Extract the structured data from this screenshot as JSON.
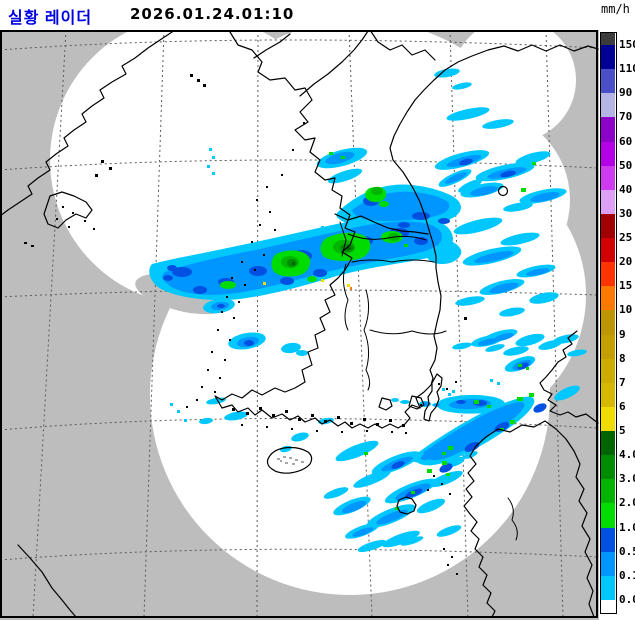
{
  "header": {
    "title": "실황 레이더",
    "title_color": "#0000e1",
    "timestamp": "2026.01.24.01:10",
    "unit_label": "mm/h"
  },
  "scale": {
    "unit": "mm/h",
    "labels": [
      "150",
      "110",
      "90",
      "70",
      "60",
      "50",
      "40",
      "30",
      "25",
      "20",
      "15",
      "10",
      "9",
      "8",
      "7",
      "6",
      "5",
      "4.0",
      "3.0",
      "2.0",
      "1.0",
      "0.5",
      "0.1",
      "0.0"
    ],
    "colors": [
      "#3c3c3c",
      "#000096",
      "#4b50c8",
      "#b4b4e6",
      "#8c00c8",
      "#b400e6",
      "#cd3cf0",
      "#dca0f5",
      "#a00000",
      "#d20000",
      "#ff3200",
      "#ff7800",
      "#bb9600",
      "#c3a000",
      "#cdac00",
      "#d7b800",
      "#f0dc00",
      "#006400",
      "#008c00",
      "#00b400",
      "#00dc00",
      "#0050e1",
      "#0096ff",
      "#00c8ff",
      "#ffffff"
    ]
  },
  "map": {
    "colors": {
      "outside_coverage": "#bdbdbd",
      "coverage": "#ffffff",
      "grid": "#5a5a5a",
      "coastline": "#000000",
      "frame": "#000000"
    },
    "palette": {
      "p01": "#00c8ff",
      "p05": "#0096ff",
      "p1": "#0050e1",
      "g1": "#00dc00",
      "g2": "#00b400",
      "g3": "#008c00",
      "g4": "#006400",
      "yellow": "#f0dc00",
      "orange": "#ff7800",
      "terrain": "#a8a8a8"
    }
  }
}
